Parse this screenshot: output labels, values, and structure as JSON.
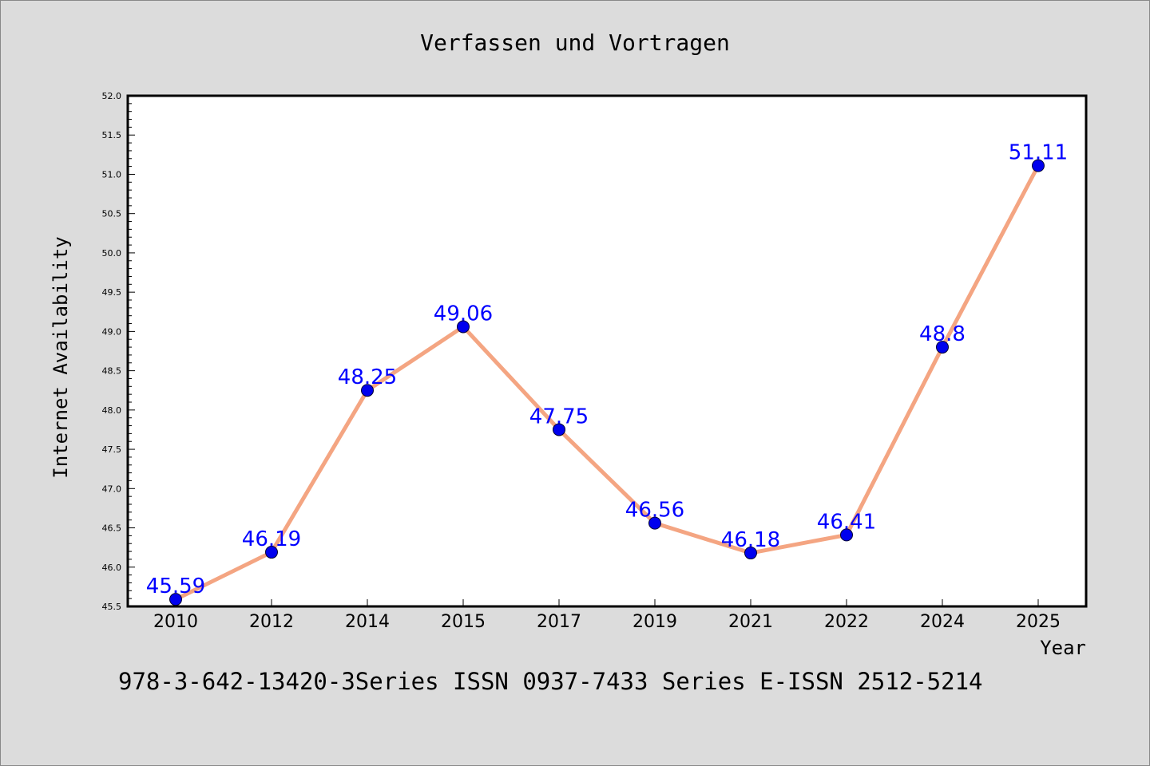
{
  "chart_data": {
    "type": "line",
    "title": "Verfassen und Vortragen",
    "xlabel": "Year",
    "ylabel": "Internet Availability",
    "categories": [
      "2010",
      "2012",
      "2014",
      "2015",
      "2017",
      "2019",
      "2021",
      "2022",
      "2024",
      "2025"
    ],
    "series": [
      {
        "values": [
          45.59,
          46.19,
          48.25,
          49.06,
          47.75,
          46.56,
          46.18,
          46.41,
          48.8,
          51.11
        ],
        "labels": [
          "45.59",
          "46.19",
          "48.25",
          "49.06",
          "47.75",
          "46.56",
          "46.18",
          "46.41",
          "48.8",
          "51.11"
        ],
        "line_color": "#f4a582",
        "marker_color": "#0000ee"
      }
    ],
    "ylim": [
      45.5,
      52.0
    ],
    "yticks": [
      "45.5",
      "46.0",
      "46.5",
      "47.0",
      "47.5",
      "48.0",
      "48.5",
      "49.0",
      "49.5",
      "50.0",
      "50.5",
      "51.0",
      "51.5",
      "52.0"
    ],
    "grid": false,
    "legend": "none",
    "label_color": "#0000ff"
  },
  "footer": {
    "text": "978-3-642-13420-3Series ISSN 0937-7433 Series E-ISSN 2512-5214"
  },
  "colors": {
    "background": "#dcdcdc",
    "plot_background": "#ffffff",
    "axis": "#000000"
  }
}
